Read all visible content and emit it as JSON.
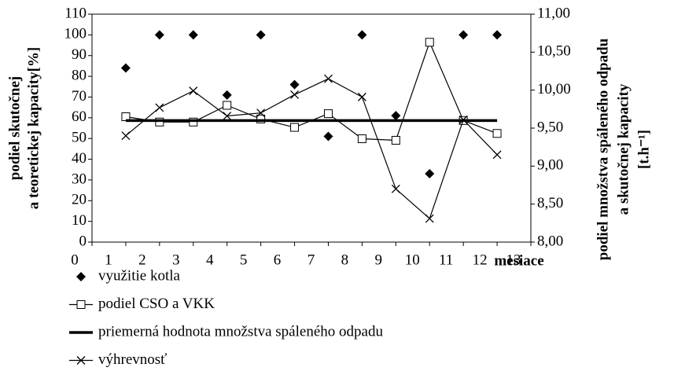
{
  "chart_data": {
    "type": "line",
    "x": [
      1,
      2,
      3,
      4,
      5,
      6,
      7,
      8,
      9,
      10,
      11,
      12
    ],
    "xlim": [
      0,
      13
    ],
    "xticks": [
      0,
      1,
      2,
      3,
      4,
      5,
      6,
      7,
      8,
      9,
      10,
      11,
      12,
      13
    ],
    "xlabel": "mesiace",
    "ylabel": [
      "podiel skutočnej",
      "a teoretickej kapacity[%]"
    ],
    "y2label": [
      "podiel množstva spáleného odpadu",
      "a skutočnej kapacity",
      "[t.h⁻¹]"
    ],
    "ylim": [
      0,
      110
    ],
    "yticks": [
      0,
      10,
      20,
      30,
      40,
      50,
      60,
      70,
      80,
      90,
      100,
      110
    ],
    "y2lim": [
      8,
      11
    ],
    "y2ticks": [
      {
        "value": 8,
        "label": "8,00"
      },
      {
        "value": 8.5,
        "label": "8,50"
      },
      {
        "value": 9,
        "label": "9,00"
      },
      {
        "value": 9.5,
        "label": "9,50"
      },
      {
        "value": 10,
        "label": "10,00"
      },
      {
        "value": 10.5,
        "label": "10,50"
      },
      {
        "value": 11,
        "label": "11,00"
      }
    ],
    "grid": false,
    "legend": "bottom-left",
    "series": [
      {
        "name": "využitie kotla",
        "color": "#000000",
        "marker": "diamond",
        "line": false,
        "axis": "y",
        "values": [
          84,
          100,
          100,
          71,
          100,
          76,
          51,
          100,
          61,
          33,
          100,
          100
        ]
      },
      {
        "name": "podiel CSO a VKK",
        "color": "#000000",
        "marker": "square",
        "line": true,
        "axis": "y2",
        "values": [
          9.65,
          9.58,
          9.58,
          9.8,
          9.62,
          9.51,
          9.69,
          9.36,
          9.34,
          10.63,
          9.6,
          9.43
        ]
      },
      {
        "name": "priemerná hodnota množstva spáleného odpadu",
        "color": "#000000",
        "marker": "none",
        "line": true,
        "thick": true,
        "axis": "y2",
        "values": [
          9.6,
          9.6,
          9.6,
          9.6,
          9.6,
          9.6,
          9.6,
          9.6,
          9.6,
          9.6,
          9.6,
          9.6
        ]
      },
      {
        "name": "výhrevnosť",
        "color": "#000000",
        "marker": "x",
        "line": true,
        "axis": "y2",
        "values": [
          9.4,
          9.77,
          9.99,
          9.66,
          9.7,
          9.94,
          10.15,
          9.91,
          8.7,
          8.31,
          9.61,
          9.15
        ]
      }
    ]
  }
}
